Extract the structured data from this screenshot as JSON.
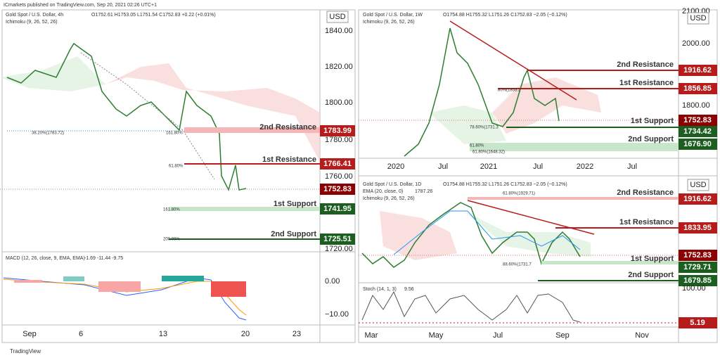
{
  "header": {
    "publisher": "ICmarkets published on TradingView.com, Sep 20, 2021 02:26 UTC+1",
    "footer": "TradingView"
  },
  "panels": [
    {
      "title": "Gold Spot / U.S. Dollar, 4h",
      "ohlc": "O1752.61 H1753.05 L1751.54 C1752.83 +0.22 (+0.01%)",
      "study": "Ichimoku (9, 26, 52, 26)",
      "currency": "USD",
      "yticks": [
        "1840.00",
        "1820.00",
        "1800.00",
        "1780.00",
        "1760.00",
        "1720.00"
      ],
      "levels": [
        {
          "name": "2nd Resistance",
          "price": "1783.99"
        },
        {
          "name": "1st Resistance",
          "price": "1766.41"
        },
        {
          "name": "1st Support",
          "price": "1741.95"
        },
        {
          "name": "2nd Support",
          "price": "1725.51"
        }
      ],
      "last_price": "1752.83",
      "fib": [
        "38.20%(1783.72)",
        "161.80%",
        "61.80%",
        "161.80%",
        "200.00%"
      ],
      "macd": {
        "label": "MACD (12, 26, close, 9, EMA, EMA)",
        "values": "-1.69  -11.44  -9.75",
        "yticks": [
          "0.00",
          "−10.00"
        ]
      },
      "xticks": [
        "Sep",
        "6",
        "13",
        "20",
        "23"
      ]
    },
    {
      "title": "Gold Spot / U.S. Dollar, 1W",
      "ohlc": "O1754.88 H1755.32 L1751.26 C1752.83 −2.05 (−0.12%)",
      "study": "Ichimoku (9, 26, 52, 26)",
      "currency": "USD",
      "yticks": [
        "2100.00",
        "2000.00",
        "1800.00"
      ],
      "levels": [
        {
          "name": "2nd Resistance",
          "price": "1916.62"
        },
        {
          "name": "1st Resistance",
          "price": "1856.85"
        },
        {
          "name": "1st Support",
          "price": "1734.42"
        },
        {
          "name": "2nd Support",
          "price": "1676.90"
        }
      ],
      "last_price": "1752.83",
      "fib": [
        "80%(1853.2",
        "78.60%(1731.3",
        "61.80%",
        "61.80%(1648.32)"
      ],
      "xticks": [
        "2020",
        "Jul",
        "2021",
        "Jul",
        "2022",
        "Jul"
      ]
    },
    {
      "title": "Gold Spot / U.S. Dollar, 1D",
      "ohlc": "O1754.88 H1755.32 L1751.26 C1752.83 −2.05 (−0.12%)",
      "study": "EMA (20, close, 0)",
      "study_value": "1787.26",
      "study2": "Ichimoku (9, 26, 52, 26)",
      "currency": "USD",
      "levels": [
        {
          "name": "2nd Resistance",
          "price": "1916.62"
        },
        {
          "name": "1st Resistance",
          "price": "1833.95"
        },
        {
          "name": "1st Support",
          "price": "1729.71"
        },
        {
          "name": "2nd Support",
          "price": "1679.85"
        }
      ],
      "last_price": "1752.83",
      "fib": [
        "61.80%(1929.71)",
        "88.60%(1731.7"
      ],
      "stoch": {
        "label": "Stoch (14, 1, 3)",
        "value": "9.56",
        "ytick": "100.00",
        "last": "5.19"
      },
      "xticks": [
        "Mar",
        "May",
        "Jul",
        "Sep",
        "Nov"
      ]
    }
  ]
}
